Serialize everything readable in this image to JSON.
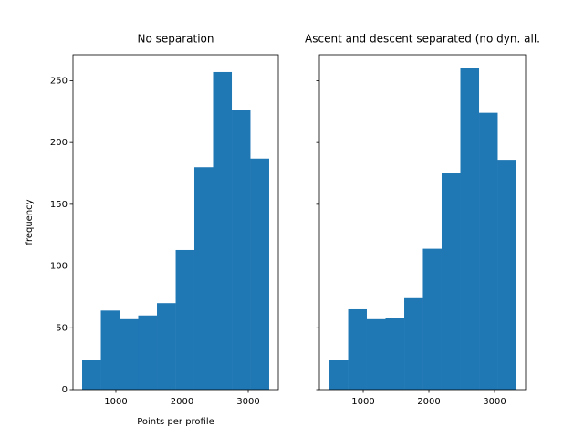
{
  "chart_data": [
    {
      "type": "histogram",
      "title": "No separation",
      "xlabel": "Points per profile",
      "ylabel": "frequency",
      "bins": [
        490,
        773,
        1056,
        1338,
        1621,
        1904,
        2186,
        2469,
        2752,
        3034,
        3317
      ],
      "values": [
        24,
        64,
        57,
        60,
        70,
        113,
        180,
        257,
        226,
        187
      ],
      "color": "#1f77b4",
      "xlim": [
        352,
        3455
      ],
      "xticks": [
        1000,
        2000,
        3000
      ],
      "ylim": [
        0,
        271
      ],
      "yticks": [
        0,
        50,
        100,
        150,
        200,
        250
      ],
      "ytick_labels": true
    },
    {
      "type": "histogram",
      "title": "Ascent and descent separated (no dyn. all.",
      "bins": [
        486,
        771,
        1055,
        1340,
        1625,
        1909,
        2194,
        2479,
        2764,
        3048,
        3333
      ],
      "values": [
        24,
        65,
        57,
        58,
        74,
        114,
        175,
        260,
        224,
        186
      ],
      "color": "#1f77b4",
      "xlim": [
        333,
        3472
      ],
      "xticks": [
        1000,
        2000,
        3000
      ],
      "ylim": [
        0,
        271
      ],
      "yticks": [
        0,
        50,
        100,
        150,
        200,
        250
      ],
      "ytick_labels": false
    }
  ]
}
